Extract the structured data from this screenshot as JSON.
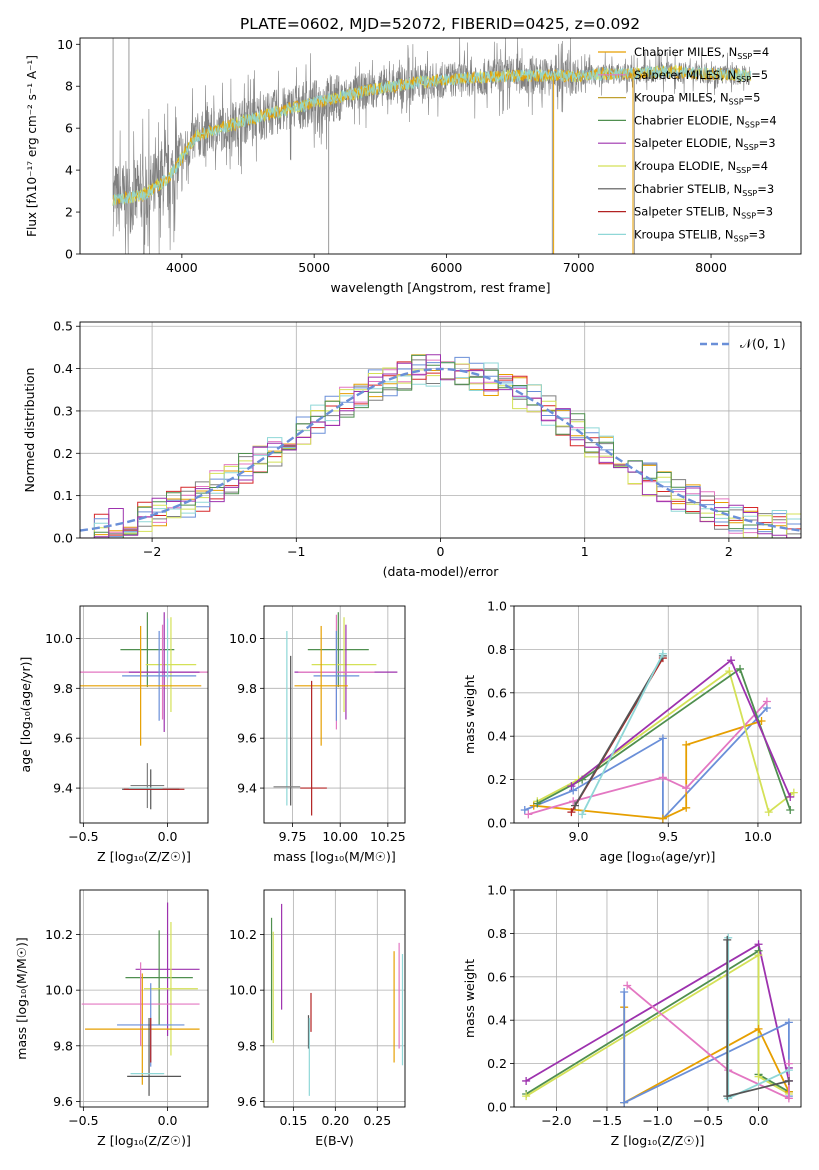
{
  "figure_title": "PLATE=0602, MJD=52072, FIBERID=0425, z=0.092",
  "colors": [
    "#e69f00",
    "#e377c2",
    "#7f7f7f",
    "#d62728",
    "#6a8fd8",
    "#8fd7d7",
    "#d4e157",
    "#4f8f4f",
    "#9d32ae",
    "#c84a1a"
  ],
  "chart_data": [
    {
      "id": "spectrum",
      "type": "line",
      "title": "PLATE=0602, MJD=52072, FIBERID=0425, z=0.092",
      "xlabel": "wavelength [Angstrom, rest frame]",
      "ylabel": "Flux [fλ10⁻¹⁷ erg cm⁻² s⁻¹ A⁻¹]",
      "xlim": [
        3230,
        8680
      ],
      "ylim": [
        0,
        10.3
      ],
      "xticks": [
        4000,
        5000,
        6000,
        7000,
        8000
      ],
      "yticks": [
        0,
        2,
        4,
        6,
        8,
        10
      ],
      "grid": false,
      "legend_position": "right",
      "legend": [
        {
          "label": "Chabrier MILES, N",
          "sub": "SSP",
          "tail": "=4",
          "color": "#e69f00"
        },
        {
          "label": "Salpeter MILES, N",
          "sub": "SSP",
          "tail": "=5",
          "color": "#e377c2"
        },
        {
          "label": "Kroupa MILES, N",
          "sub": "SSP",
          "tail": "=5",
          "color": "#c0a030"
        },
        {
          "label": "Chabrier ELODIE, N",
          "sub": "SSP",
          "tail": "=4",
          "color": "#4f8f4f"
        },
        {
          "label": "Salpeter ELODIE, N",
          "sub": "SSP",
          "tail": "=3",
          "color": "#9d32ae"
        },
        {
          "label": "Kroupa ELODIE, N",
          "sub": "SSP",
          "tail": "=4",
          "color": "#d4e157"
        },
        {
          "label": "Chabrier STELIB, N",
          "sub": "SSP",
          "tail": "=3",
          "color": "#555555"
        },
        {
          "label": "Salpeter STELIB, N",
          "sub": "SSP",
          "tail": "=3",
          "color": "#b22222"
        },
        {
          "label": "Kroupa STELIB, N",
          "sub": "SSP",
          "tail": "=3",
          "color": "#8fd7d7"
        }
      ],
      "continuum_nodes": [
        [
          3480,
          2.6
        ],
        [
          3700,
          2.8
        ],
        [
          3900,
          3.6
        ],
        [
          4000,
          4.6
        ],
        [
          4100,
          5.6
        ],
        [
          4300,
          6.0
        ],
        [
          4500,
          6.4
        ],
        [
          4800,
          6.9
        ],
        [
          5000,
          7.2
        ],
        [
          5200,
          7.5
        ],
        [
          5400,
          7.8
        ],
        [
          5600,
          8.0
        ],
        [
          5800,
          8.2
        ],
        [
          6000,
          8.3
        ],
        [
          6200,
          8.4
        ],
        [
          6500,
          8.5
        ],
        [
          6800,
          8.5
        ],
        [
          7000,
          8.5
        ],
        [
          7200,
          8.6
        ],
        [
          7400,
          8.6
        ],
        [
          7700,
          8.7
        ],
        [
          8000,
          8.6
        ],
        [
          8300,
          8.5
        ]
      ]
    },
    {
      "id": "residuals",
      "type": "bar",
      "xlabel": "(data-model)/error",
      "ylabel": "Normed distribution",
      "xlim": [
        -2.5,
        2.5
      ],
      "ylim": [
        0,
        0.51
      ],
      "xticks": [
        -2,
        -1,
        0,
        1,
        2
      ],
      "yticks": [
        0.0,
        0.1,
        0.2,
        0.3,
        0.4,
        0.5
      ],
      "grid": true,
      "legend_position": "top-right",
      "legend_label": "𝒩(0, 1)",
      "gaussian": {
        "mean": 0,
        "sigma": 1,
        "color": "#6a8fd8"
      }
    },
    {
      "id": "age-vs-Z",
      "type": "scatter",
      "xlabel": "Z [log₁₀(Z/Z☉)]",
      "ylabel": "age  [log₁₀(age/yr)]",
      "xlim": [
        -0.52,
        0.24
      ],
      "ylim": [
        9.26,
        10.13
      ],
      "xticks": [
        -0.5,
        0.0
      ],
      "yticks": [
        9.4,
        9.6,
        9.8,
        10.0
      ],
      "grid": true,
      "errorbars": [
        {
          "x": -0.12,
          "y": 9.955,
          "xerr": 0.16,
          "yerr": 0.15,
          "color": "#4f8f4f"
        },
        {
          "x": 0.02,
          "y": 9.895,
          "xerr": 0.15,
          "yerr": 0.19,
          "color": "#d4e157"
        },
        {
          "x": -0.03,
          "y": 9.865,
          "xerr": 0.57,
          "yerr": 0.19,
          "color": "#e377c2"
        },
        {
          "x": -0.02,
          "y": 9.865,
          "xerr": 0.21,
          "yerr": 0.24,
          "color": "#9d32ae"
        },
        {
          "x": -0.05,
          "y": 9.85,
          "xerr": 0.22,
          "yerr": 0.18,
          "color": "#6a8fd8"
        },
        {
          "x": -0.16,
          "y": 9.81,
          "xerr": 0.36,
          "yerr": 0.24,
          "color": "#e69f00"
        },
        {
          "x": 0.0,
          "y": 9.96,
          "xerr": 0.0,
          "yerr": 0.12,
          "color": "#8fd7d7"
        },
        {
          "x": -0.12,
          "y": 9.41,
          "xerr": 0.1,
          "yerr": 0.09,
          "color": "#7f7f7f"
        },
        {
          "x": -0.1,
          "y": 9.395,
          "xerr": 0.17,
          "yerr": 0.08,
          "color": "#555555"
        },
        {
          "x": -0.08,
          "y": 9.395,
          "xerr": 0.18,
          "yerr": 0.0,
          "color": "#b22222"
        },
        {
          "x": -0.13,
          "y": 9.4,
          "xerr": 0.1,
          "yerr": 0.0,
          "color": "#8fd7d7"
        }
      ]
    },
    {
      "id": "age-vs-mass",
      "type": "scatter",
      "xlabel": "mass [log₁₀(M/M☉)]",
      "ylabel": "",
      "xlim": [
        9.6,
        10.34
      ],
      "ylim": [
        9.26,
        10.13
      ],
      "xticks": [
        9.75,
        10.0,
        10.25
      ],
      "yticks": [
        9.4,
        9.6,
        9.8,
        10.0
      ],
      "grid": true,
      "errorbars": [
        {
          "x": 9.99,
          "y": 9.955,
          "xerr": 0.16,
          "yerr": 0.15,
          "color": "#4f8f4f"
        },
        {
          "x": 10.02,
          "y": 9.895,
          "xerr": 0.17,
          "yerr": 0.19,
          "color": "#d4e157"
        },
        {
          "x": 10.03,
          "y": 9.865,
          "xerr": 0.27,
          "yerr": 0.19,
          "color": "#9d32ae"
        },
        {
          "x": 9.98,
          "y": 9.865,
          "xerr": 0.2,
          "yerr": 0.23,
          "color": "#e377c2"
        },
        {
          "x": 9.98,
          "y": 9.85,
          "xerr": 0.12,
          "yerr": 0.18,
          "color": "#6a8fd8"
        },
        {
          "x": 9.9,
          "y": 9.81,
          "xerr": 0.14,
          "yerr": 0.24,
          "color": "#e69f00"
        },
        {
          "x": 9.72,
          "y": 9.68,
          "xerr": 0.0,
          "yerr": 0.35,
          "color": "#8fd7d7"
        },
        {
          "x": 9.74,
          "y": 9.63,
          "xerr": 0.0,
          "yerr": 0.3,
          "color": "#555555"
        },
        {
          "x": 9.72,
          "y": 9.405,
          "xerr": 0.07,
          "yerr": 0.0,
          "color": "#7f7f7f"
        },
        {
          "x": 9.85,
          "y": 9.56,
          "xerr": 0.0,
          "yerr": 0.27,
          "color": "#b22222"
        },
        {
          "x": 9.86,
          "y": 9.4,
          "xerr": 0.07,
          "yerr": 0.0,
          "color": "#b22222"
        }
      ]
    },
    {
      "id": "weight-vs-age",
      "type": "line",
      "xlabel": "age  [log₁₀(age/yr)]",
      "ylabel": "mass weight",
      "xlim": [
        8.64,
        10.24
      ],
      "ylim": [
        0.0,
        1.0
      ],
      "xticks": [
        9.0,
        9.5,
        10.0
      ],
      "yticks": [
        0.0,
        0.2,
        0.4,
        0.6,
        0.8,
        1.0
      ],
      "grid": true,
      "series": [
        {
          "color": "#6a8fd8",
          "x": [
            8.7,
            8.97,
            9.47,
            9.47,
            10.05
          ],
          "y": [
            0.06,
            0.15,
            0.39,
            0.02,
            0.53
          ]
        },
        {
          "color": "#e69f00",
          "x": [
            8.75,
            9.47,
            9.6,
            9.6,
            10.02
          ],
          "y": [
            0.08,
            0.02,
            0.07,
            0.36,
            0.47
          ]
        },
        {
          "color": "#e377c2",
          "x": [
            8.72,
            8.97,
            9.47,
            9.6,
            10.05
          ],
          "y": [
            0.04,
            0.1,
            0.21,
            0.16,
            0.56
          ]
        },
        {
          "color": "#d4e157",
          "x": [
            8.77,
            9.0,
            9.84,
            10.06,
            10.2
          ],
          "y": [
            0.1,
            0.2,
            0.7,
            0.05,
            0.14
          ]
        },
        {
          "color": "#4f8f4f",
          "x": [
            8.77,
            9.02,
            9.9,
            10.18
          ],
          "y": [
            0.09,
            0.2,
            0.71,
            0.06
          ]
        },
        {
          "color": "#9d32ae",
          "x": [
            8.96,
            9.85,
            10.18
          ],
          "y": [
            0.17,
            0.75,
            0.12
          ]
        },
        {
          "color": "#b22222",
          "x": [
            8.96,
            9.47
          ],
          "y": [
            0.05,
            0.76
          ]
        },
        {
          "color": "#555555",
          "x": [
            8.98,
            9.47
          ],
          "y": [
            0.08,
            0.77
          ]
        },
        {
          "color": "#8fd7d7",
          "x": [
            9.02,
            9.47
          ],
          "y": [
            0.04,
            0.78
          ]
        }
      ]
    },
    {
      "id": "mass-vs-Z",
      "type": "scatter",
      "xlabel": "Z [log₁₀(Z/Z☉)]",
      "ylabel": "mass [log₁₀(M/M☉)]",
      "xlim": [
        -0.52,
        0.24
      ],
      "ylim": [
        9.58,
        10.36
      ],
      "xticks": [
        -0.5,
        0.0
      ],
      "yticks": [
        9.6,
        9.8,
        10.0,
        10.2
      ],
      "grid": true,
      "errorbars": [
        {
          "x": 0.0,
          "y": 10.075,
          "xerr": 0.19,
          "yerr": 0.24,
          "color": "#9d32ae"
        },
        {
          "x": -0.05,
          "y": 10.045,
          "xerr": 0.2,
          "yerr": 0.17,
          "color": "#4f8f4f"
        },
        {
          "x": 0.02,
          "y": 10.005,
          "xerr": 0.16,
          "yerr": 0.24,
          "color": "#d4e157"
        },
        {
          "x": -0.16,
          "y": 9.95,
          "xerr": 0.35,
          "yerr": 0.15,
          "color": "#e377c2"
        },
        {
          "x": -0.15,
          "y": 9.86,
          "xerr": 0.34,
          "yerr": 0.2,
          "color": "#e69f00"
        },
        {
          "x": -0.1,
          "y": 9.875,
          "xerr": 0.2,
          "yerr": 0.15,
          "color": "#6a8fd8"
        },
        {
          "x": -0.1,
          "y": 9.82,
          "xerr": 0.0,
          "yerr": 0.08,
          "color": "#b22222"
        },
        {
          "x": -0.11,
          "y": 9.76,
          "xerr": 0.0,
          "yerr": 0.14,
          "color": "#555555"
        },
        {
          "x": -0.12,
          "y": 9.7,
          "xerr": 0.1,
          "yerr": 0.0,
          "color": "#8fd7d7"
        },
        {
          "x": -0.08,
          "y": 9.69,
          "xerr": 0.16,
          "yerr": 0.0,
          "color": "#555555"
        }
      ]
    },
    {
      "id": "mass-vs-ebv",
      "type": "scatter",
      "xlabel": "E(B-V)",
      "ylabel": "",
      "xlim": [
        0.115,
        0.283
      ],
      "ylim": [
        9.58,
        10.36
      ],
      "xticks": [
        0.15,
        0.2,
        0.25
      ],
      "yticks": [
        9.6,
        9.8,
        10.0,
        10.2
      ],
      "grid": true,
      "errorbars": [
        {
          "x": 0.124,
          "y": 10.04,
          "xerr": 0.0,
          "yerr": 0.22,
          "color": "#4f8f4f"
        },
        {
          "x": 0.126,
          "y": 10.01,
          "xerr": 0.0,
          "yerr": 0.2,
          "color": "#d4e157"
        },
        {
          "x": 0.136,
          "y": 10.12,
          "xerr": 0.0,
          "yerr": 0.19,
          "color": "#9d32ae"
        },
        {
          "x": 0.168,
          "y": 9.85,
          "xerr": 0.0,
          "yerr": 0.06,
          "color": "#555555"
        },
        {
          "x": 0.169,
          "y": 9.76,
          "xerr": 0.0,
          "yerr": 0.14,
          "color": "#8fd7d7"
        },
        {
          "x": 0.171,
          "y": 9.92,
          "xerr": 0.0,
          "yerr": 0.07,
          "color": "#b22222"
        },
        {
          "x": 0.27,
          "y": 9.94,
          "xerr": 0.0,
          "yerr": 0.2,
          "color": "#e69f00"
        },
        {
          "x": 0.276,
          "y": 9.98,
          "xerr": 0.0,
          "yerr": 0.19,
          "color": "#e377c2"
        },
        {
          "x": 0.28,
          "y": 9.93,
          "xerr": 0.0,
          "yerr": 0.2,
          "color": "#8fd7d7"
        }
      ]
    },
    {
      "id": "weight-vs-Z",
      "type": "line",
      "xlabel": "Z [log₁₀(Z/Z☉)]",
      "ylabel": "mass weight",
      "xlim": [
        -2.42,
        0.42
      ],
      "ylim": [
        0.0,
        1.0
      ],
      "xticks": [
        -2.0,
        -1.5,
        -1.0,
        -0.5,
        0.0
      ],
      "yticks": [
        0.0,
        0.2,
        0.4,
        0.6,
        0.8,
        1.0
      ],
      "grid": true,
      "series": [
        {
          "color": "#9d32ae",
          "x": [
            -2.3,
            0.0,
            0.3,
            0.3
          ],
          "y": [
            0.12,
            0.75,
            0.12,
            0.18
          ]
        },
        {
          "color": "#4f8f4f",
          "x": [
            -2.3,
            0.0,
            0.0,
            0.3
          ],
          "y": [
            0.06,
            0.72,
            0.15,
            0.07
          ]
        },
        {
          "color": "#d4e157",
          "x": [
            -2.3,
            0.0,
            0.0,
            0.3
          ],
          "y": [
            0.05,
            0.7,
            0.14,
            0.06
          ]
        },
        {
          "color": "#e69f00",
          "x": [
            -1.33,
            -1.33,
            0.0,
            0.3
          ],
          "y": [
            0.46,
            0.02,
            0.36,
            0.07
          ]
        },
        {
          "color": "#6a8fd8",
          "x": [
            -1.33,
            -1.33,
            0.3,
            0.3
          ],
          "y": [
            0.53,
            0.02,
            0.39,
            0.05
          ]
        },
        {
          "color": "#e377c2",
          "x": [
            -1.3,
            -0.3,
            0.3,
            0.3
          ],
          "y": [
            0.56,
            0.17,
            0.04,
            0.2
          ]
        },
        {
          "color": "#8fd7d7",
          "x": [
            -0.3,
            -0.3,
            0.3
          ],
          "y": [
            0.78,
            0.04,
            0.17
          ]
        },
        {
          "color": "#555555",
          "x": [
            -0.31,
            -0.31,
            0.3
          ],
          "y": [
            0.77,
            0.05,
            0.12
          ]
        }
      ]
    }
  ]
}
